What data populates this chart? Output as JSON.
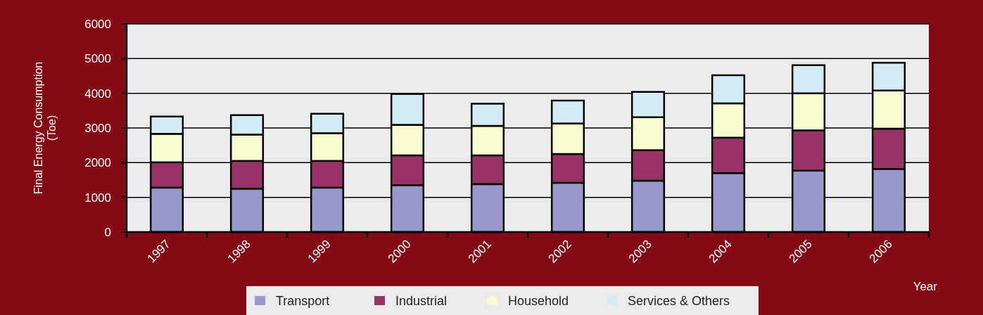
{
  "chart_data": {
    "type": "bar",
    "stacked": true,
    "xlabel": "Year",
    "ylabel": "Final Energy Consumption\n(Toe)",
    "categories": [
      "1997",
      "1998",
      "1999",
      "2000",
      "2001",
      "2002",
      "2003",
      "2004",
      "2005",
      "2006"
    ],
    "series": [
      {
        "name": "Transport",
        "color": "#9898ca",
        "values": [
          1280,
          1250,
          1280,
          1350,
          1380,
          1420,
          1480,
          1700,
          1770,
          1820
        ]
      },
      {
        "name": "Industrial",
        "color": "#993366",
        "values": [
          730,
          800,
          770,
          860,
          830,
          830,
          880,
          1020,
          1160,
          1160
        ]
      },
      {
        "name": "Household",
        "color": "#fafad0",
        "values": [
          820,
          760,
          800,
          880,
          850,
          880,
          950,
          990,
          1070,
          1100
        ]
      },
      {
        "name": "Services & Others",
        "color": "#d4edf4",
        "values": [
          500,
          560,
          560,
          890,
          640,
          660,
          730,
          810,
          810,
          800
        ]
      }
    ],
    "ylim": [
      0,
      6000
    ],
    "yticks": [
      0,
      1000,
      2000,
      3000,
      4000,
      5000,
      6000
    ],
    "grid": "y",
    "legend": "bottom"
  }
}
